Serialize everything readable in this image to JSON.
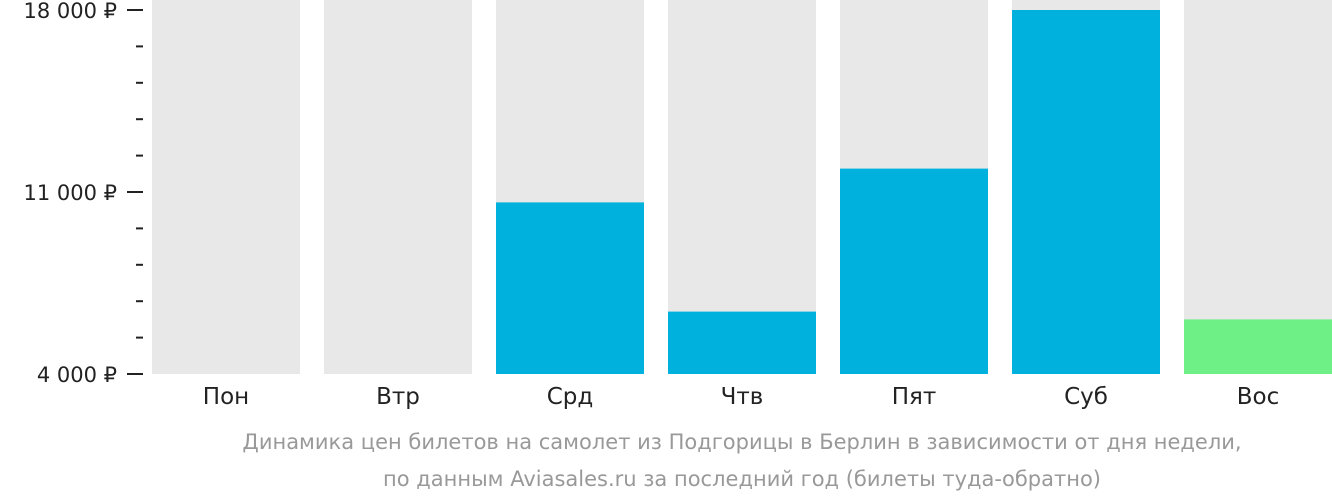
{
  "chart_data": {
    "type": "bar",
    "title": "",
    "xlabel": "",
    "ylabel": "",
    "categories": [
      "Пон",
      "Втр",
      "Срд",
      "Чтв",
      "Пят",
      "Суб",
      "Вос"
    ],
    "values": [
      null,
      null,
      10600,
      6400,
      11900,
      18000,
      6100
    ],
    "ylim": [
      4000,
      18000
    ],
    "y_ticks": [
      {
        "value": 18000,
        "label": "18 000 ₽"
      },
      {
        "value": 11000,
        "label": "11 000 ₽"
      },
      {
        "value": 4000,
        "label": "4 000 ₽"
      }
    ],
    "minor_tick_step": 1400,
    "colors": {
      "bar": "#00b0dd",
      "bar_min": "#6ef087",
      "bar_background": "#e8e8e8",
      "axis": "#222222"
    },
    "highlight_category": "Вос",
    "grid": false,
    "legend": "none"
  },
  "caption": {
    "line1": "Динамика цен билетов на самолет из Подгорицы в Берлин в зависимости от дня недели,",
    "line2": "по данным Aviasales.ru за последний год (билеты туда-обратно)"
  }
}
